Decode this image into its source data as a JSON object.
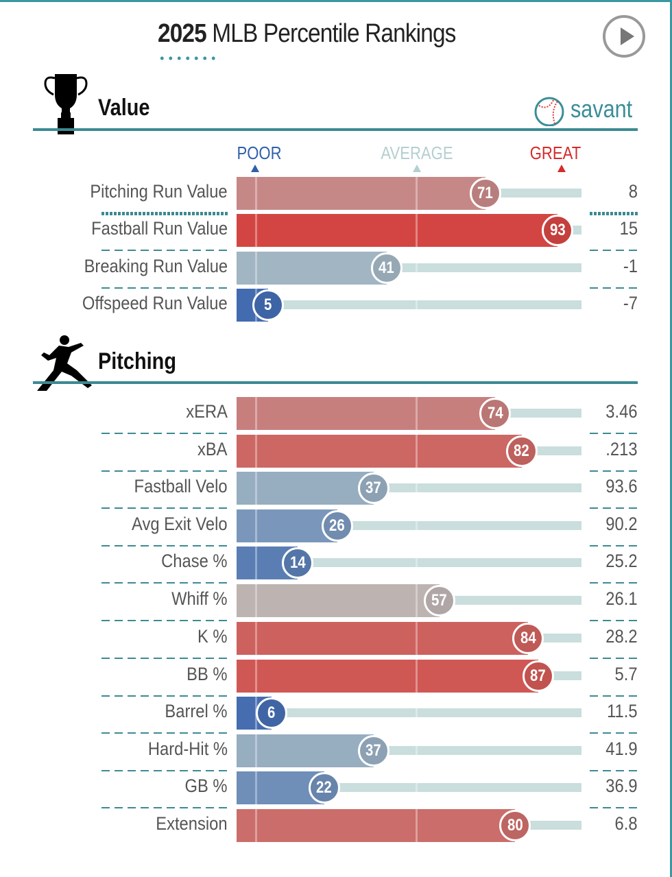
{
  "header": {
    "title_year": "2025",
    "title_rest": " MLB Percentile Rankings",
    "play_icon": "play-circle-icon"
  },
  "sections": {
    "value": {
      "title": "Value",
      "icon": "trophy-icon"
    },
    "pitching": {
      "title": "Pitching",
      "icon": "pitcher-silhouette-icon"
    }
  },
  "brand": {
    "text": "savant",
    "icon": "baseball-icon"
  },
  "scale": {
    "poor": "POOR",
    "average": "AVERAGE",
    "great": "GREAT",
    "colors": {
      "poor": "#2f5fab",
      "average": "#b5cfd0",
      "great": "#d52b2b"
    }
  },
  "chart_data": {
    "type": "bar",
    "orientation": "horizontal",
    "xlim": [
      0,
      100
    ],
    "groups": [
      {
        "name": "Value",
        "rows": [
          {
            "label": "Pitching Run Value",
            "percentile": 71,
            "value": "8"
          },
          {
            "label": "Fastball Run Value",
            "percentile": 93,
            "value": "15"
          },
          {
            "label": "Breaking Run Value",
            "percentile": 41,
            "value": "-1"
          },
          {
            "label": "Offspeed Run Value",
            "percentile": 5,
            "value": "-7"
          }
        ]
      },
      {
        "name": "Pitching",
        "rows": [
          {
            "label": "xERA",
            "percentile": 74,
            "value": "3.46"
          },
          {
            "label": "xBA",
            "percentile": 82,
            "value": ".213"
          },
          {
            "label": "Fastball Velo",
            "percentile": 37,
            "value": "93.6"
          },
          {
            "label": "Avg Exit Velo",
            "percentile": 26,
            "value": "90.2"
          },
          {
            "label": "Chase %",
            "percentile": 14,
            "value": "25.2"
          },
          {
            "label": "Whiff %",
            "percentile": 57,
            "value": "26.1"
          },
          {
            "label": "K %",
            "percentile": 84,
            "value": "28.2"
          },
          {
            "label": "BB %",
            "percentile": 87,
            "value": "5.7"
          },
          {
            "label": "Barrel %",
            "percentile": 6,
            "value": "11.5"
          },
          {
            "label": "Hard-Hit %",
            "percentile": 37,
            "value": "41.9"
          },
          {
            "label": "GB %",
            "percentile": 22,
            "value": "36.9"
          },
          {
            "label": "Extension",
            "percentile": 80,
            "value": "6.8"
          }
        ]
      }
    ]
  }
}
